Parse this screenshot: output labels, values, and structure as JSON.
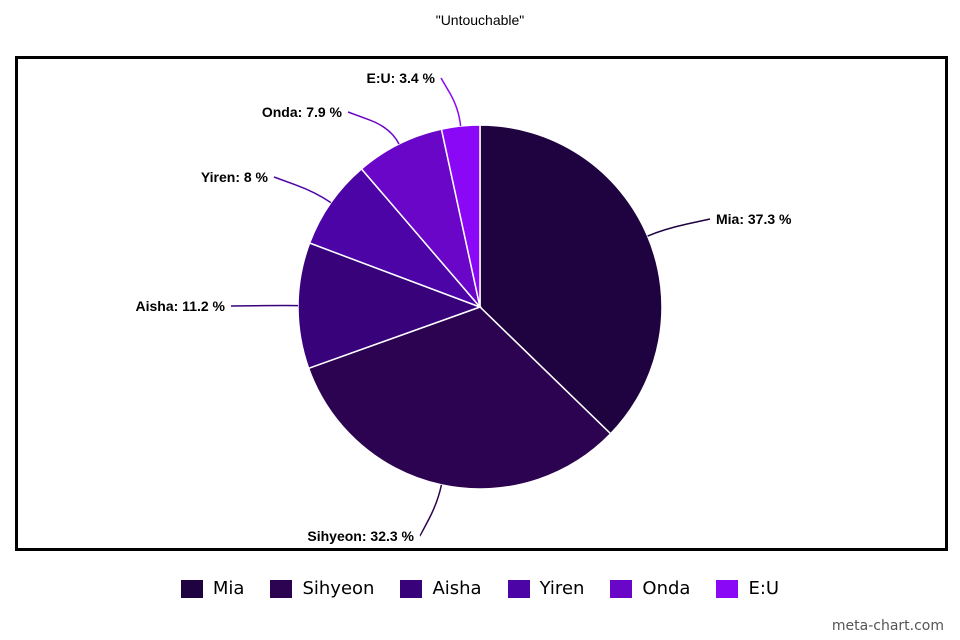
{
  "chart_data": {
    "type": "pie",
    "title": "\"Untouchable\"",
    "slices": [
      {
        "label": "Mia",
        "value": 37.3,
        "display": "Mia: 37.3 %",
        "color": "#1f0340"
      },
      {
        "label": "Sihyeon",
        "value": 32.3,
        "display": "Sihyeon: 32.3 %",
        "color": "#2b0350"
      },
      {
        "label": "Aisha",
        "value": 11.2,
        "display": "Aisha: 11.2 %",
        "color": "#38037a"
      },
      {
        "label": "Yiren",
        "value": 8.0,
        "display": "Yiren: 8 %",
        "color": "#4c04a6"
      },
      {
        "label": "Onda",
        "value": 7.9,
        "display": "Onda: 7.9 %",
        "color": "#6a06c8"
      },
      {
        "label": "E:U",
        "value": 3.4,
        "display": "E:U: 3.4 %",
        "color": "#8a08f5"
      }
    ],
    "legend_position": "bottom"
  },
  "watermark": "meta-chart.com"
}
